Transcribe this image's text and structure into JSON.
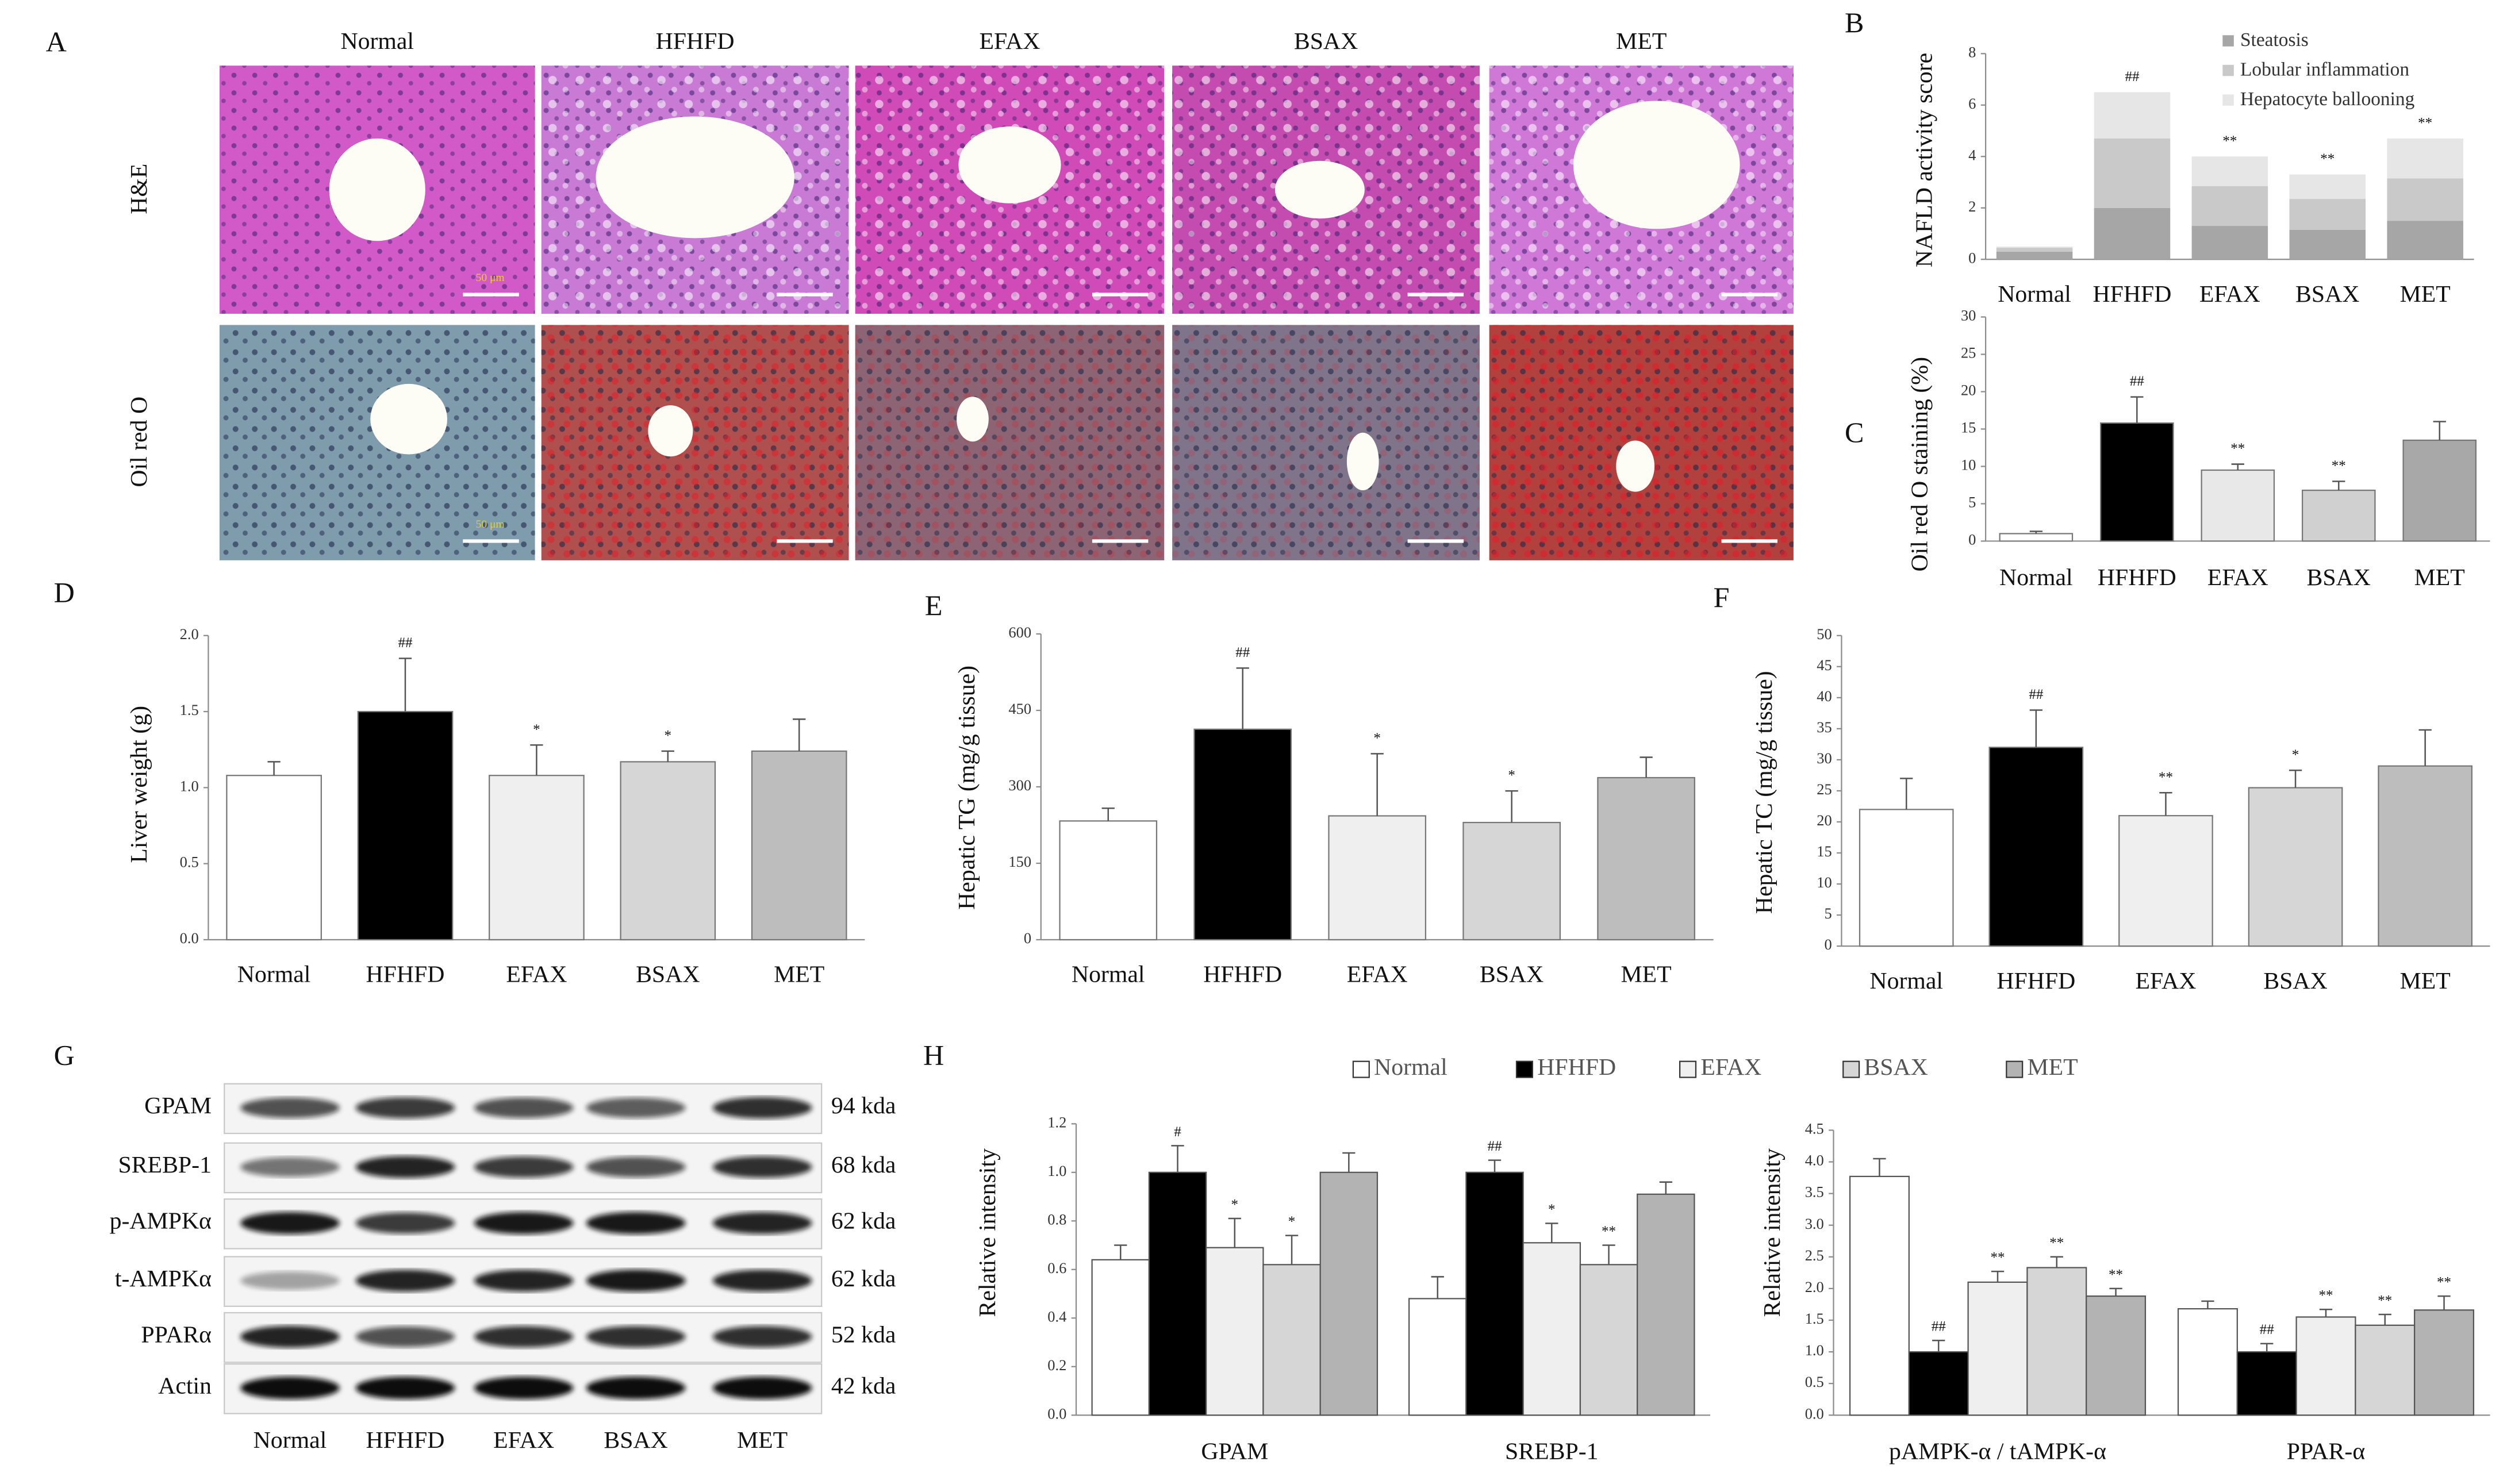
{
  "histology": {
    "panel_label": "A",
    "columns": [
      "Normal",
      "HFHFD",
      "EFAX",
      "BSAX",
      "MET"
    ],
    "rows": [
      "H&E",
      "Oil red O"
    ],
    "scale_bar": "50 μm"
  },
  "western_blot": {
    "panel_label": "G",
    "lanes": [
      "Normal",
      "HFHFD",
      "EFAX",
      "BSAX",
      "MET"
    ],
    "proteins": [
      {
        "name": "GPAM",
        "size": "94 kda"
      },
      {
        "name": "SREBP-1",
        "size": "68 kda"
      },
      {
        "name": "p-AMPKα",
        "size": "62 kda"
      },
      {
        "name": "t-AMPKα",
        "size": "62 kda"
      },
      {
        "name": "PPARα",
        "size": "52 kda"
      },
      {
        "name": "Actin",
        "size": "42 kda"
      }
    ]
  },
  "chart_data": [
    {
      "type": "stacked_bar",
      "panel_label": "B",
      "y_label": "NAFLD activity score",
      "legend": "top-right",
      "categories": [
        "Normal",
        "HFHFD",
        "EFAX",
        "BSAX",
        "MET"
      ],
      "series": [
        {
          "name": "Steatosis",
          "color": "#a6a6a6",
          "values": [
            0.3,
            2.0,
            1.3,
            1.15,
            1.5
          ]
        },
        {
          "name": "Lobular inflammation",
          "color": "#c9c9c9",
          "values": [
            0.15,
            2.7,
            1.55,
            1.2,
            1.65
          ]
        },
        {
          "name": "Hepatocyte ballooning",
          "color": "#e6e6e6",
          "values": [
            0.05,
            1.8,
            1.15,
            0.95,
            1.55
          ]
        }
      ],
      "annotations": [
        null,
        "##",
        "**",
        "**",
        "**"
      ],
      "ylim": [
        0,
        8
      ],
      "yticks": [
        0,
        2,
        4,
        6,
        8
      ]
    },
    {
      "type": "bar",
      "panel_label": "C",
      "y_label": "Oil red O staining (%)",
      "categories": [
        "Normal",
        "HFHFD",
        "EFAX",
        "BSAX",
        "MET"
      ],
      "values": [
        1.0,
        15.8,
        9.5,
        6.8,
        13.5
      ],
      "errors": [
        0.3,
        3.5,
        0.8,
        1.2,
        2.5
      ],
      "colors": [
        "#ffffff",
        "#000000",
        "#e8e8e8",
        "#d0d0d0",
        "#a8a8a8"
      ],
      "annotations": [
        null,
        "##",
        "**",
        "**",
        null
      ],
      "ylim": [
        0,
        30
      ],
      "yticks": [
        0,
        5,
        10,
        15,
        20,
        25,
        30
      ]
    },
    {
      "type": "bar",
      "panel_label": "D",
      "y_label": "Liver weight (g)",
      "categories": [
        "Normal",
        "HFHFD",
        "EFAX",
        "BSAX",
        "MET"
      ],
      "values": [
        1.08,
        1.5,
        1.08,
        1.17,
        1.24
      ],
      "errors": [
        0.09,
        0.35,
        0.2,
        0.07,
        0.21
      ],
      "colors": [
        "#ffffff",
        "#000000",
        "#efefef",
        "#d6d6d6",
        "#bdbdbd"
      ],
      "annotations": [
        null,
        "##",
        "*",
        "*",
        null
      ],
      "ylim": [
        0,
        2
      ],
      "yticks": [
        {
          "value": 0,
          "label": "0.0"
        },
        {
          "value": 0.5,
          "label": "0.5"
        },
        {
          "value": 1,
          "label": "1.0"
        },
        {
          "value": 1.5,
          "label": "1.5"
        },
        {
          "value": 2,
          "label": "2.0"
        }
      ]
    },
    {
      "type": "bar",
      "panel_label": "E",
      "y_label": "Hepatic TG (mg/g tissue)",
      "categories": [
        "Normal",
        "HFHFD",
        "EFAX",
        "BSAX",
        "MET"
      ],
      "values": [
        233,
        413,
        243,
        230,
        318
      ],
      "errors": [
        25,
        120,
        122,
        62,
        40
      ],
      "colors": [
        "#ffffff",
        "#000000",
        "#efefef",
        "#d6d6d6",
        "#bdbdbd"
      ],
      "annotations": [
        null,
        "##",
        "*",
        "*",
        null
      ],
      "ylim": [
        0,
        600
      ],
      "yticks": [
        0,
        150,
        300,
        450,
        600
      ]
    },
    {
      "type": "bar",
      "panel_label": "F",
      "y_label": "Hepatic TC (mg/g tissue)",
      "categories": [
        "Normal",
        "HFHFD",
        "EFAX",
        "BSAX",
        "MET"
      ],
      "values": [
        22,
        32,
        21,
        25.5,
        29
      ],
      "errors": [
        5,
        6,
        3.7,
        2.8,
        5.8
      ],
      "colors": [
        "#ffffff",
        "#000000",
        "#efefef",
        "#d6d6d6",
        "#bdbdbd"
      ],
      "annotations": [
        null,
        "##",
        "**",
        "*",
        null
      ],
      "ylim": [
        0,
        50
      ],
      "yticks": [
        0,
        5,
        10,
        15,
        20,
        25,
        30,
        35,
        40,
        45,
        50
      ]
    },
    {
      "type": "grouped_bar",
      "panel_label": "H",
      "y_label": "Relative intensity",
      "legend": "top",
      "series": [
        {
          "name": "Normal",
          "color": "#ffffff"
        },
        {
          "name": "HFHFD",
          "color": "#000000"
        },
        {
          "name": "EFAX",
          "color": "#efefef"
        },
        {
          "name": "BSAX",
          "color": "#d6d6d6"
        },
        {
          "name": "MET",
          "color": "#b3b3b3"
        }
      ],
      "subplots": [
        {
          "categories": [
            "GPAM",
            "SREBP-1"
          ],
          "values": [
            [
              0.64,
              0.48
            ],
            [
              1.0,
              1.0
            ],
            [
              0.69,
              0.71
            ],
            [
              0.62,
              0.62
            ],
            [
              1.0,
              0.91
            ]
          ],
          "errors": [
            [
              0.06,
              0.09
            ],
            [
              0.11,
              0.05
            ],
            [
              0.12,
              0.08
            ],
            [
              0.12,
              0.08
            ],
            [
              0.08,
              0.05
            ]
          ],
          "annotations": [
            [
              null,
              null
            ],
            [
              "#",
              "##"
            ],
            [
              "*",
              "*"
            ],
            [
              "*",
              "**"
            ],
            [
              null,
              null
            ]
          ],
          "ylim": [
            0,
            1.2
          ],
          "yticks": [
            {
              "value": 0,
              "label": "0.0"
            },
            {
              "value": 0.2,
              "label": "0.2"
            },
            {
              "value": 0.4,
              "label": "0.4"
            },
            {
              "value": 0.6,
              "label": "0.6"
            },
            {
              "value": 0.8,
              "label": "0.8"
            },
            {
              "value": 1,
              "label": "1.0"
            },
            {
              "value": 1.2,
              "label": "1.2"
            }
          ]
        },
        {
          "categories": [
            "pAMPK-α / tAMPK-α",
            "PPAR-α"
          ],
          "values": [
            [
              3.77,
              1.68
            ],
            [
              1.0,
              1.0
            ],
            [
              2.1,
              1.55
            ],
            [
              2.33,
              1.42
            ],
            [
              1.88,
              1.66
            ]
          ],
          "errors": [
            [
              0.28,
              0.12
            ],
            [
              0.18,
              0.13
            ],
            [
              0.17,
              0.12
            ],
            [
              0.17,
              0.17
            ],
            [
              0.12,
              0.22
            ]
          ],
          "annotations": [
            [
              null,
              null
            ],
            [
              "##",
              "##"
            ],
            [
              "**",
              "**"
            ],
            [
              "**",
              "**"
            ],
            [
              "**",
              "**"
            ]
          ],
          "ylim": [
            0,
            4.5
          ],
          "yticks": [
            {
              "value": 0,
              "label": "0.0"
            },
            {
              "value": 0.5,
              "label": "0.5"
            },
            {
              "value": 1,
              "label": "1.0"
            },
            {
              "value": 1.5,
              "label": "1.5"
            },
            {
              "value": 2,
              "label": "2.0"
            },
            {
              "value": 2.5,
              "label": "2.5"
            },
            {
              "value": 3,
              "label": "3.0"
            },
            {
              "value": 3.5,
              "label": "3.5"
            },
            {
              "value": 4,
              "label": "4.0"
            },
            {
              "value": 4.5,
              "label": "4.5"
            }
          ]
        }
      ]
    }
  ]
}
